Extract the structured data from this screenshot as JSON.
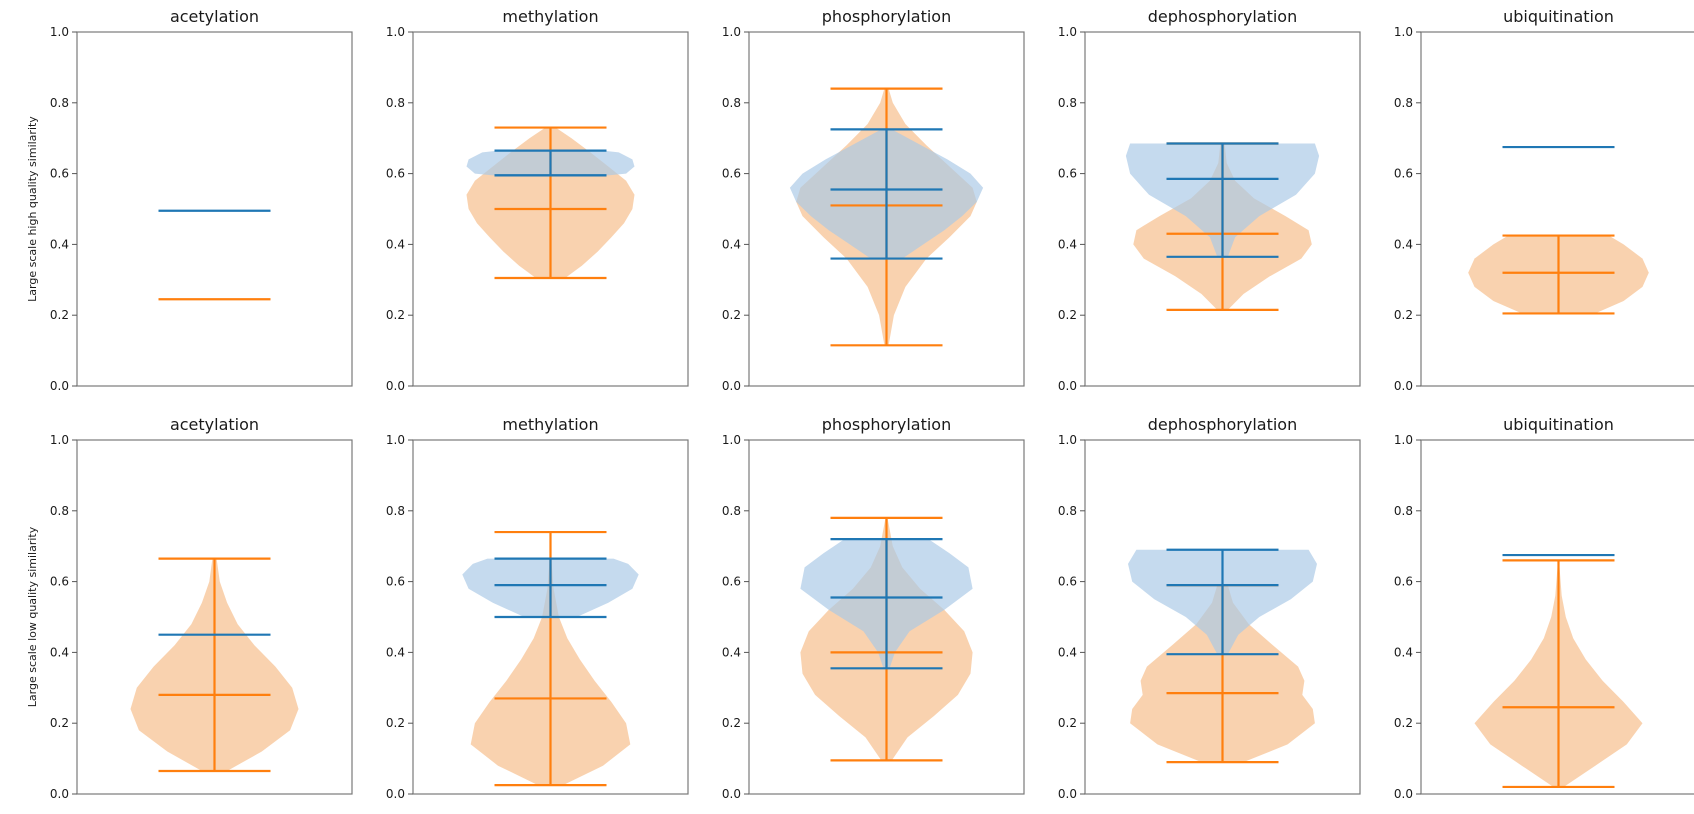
{
  "chart_data": {
    "type": "violin",
    "ylim": [
      0,
      1
    ],
    "yticks": [
      "0.0",
      "0.2",
      "0.4",
      "0.6",
      "0.8",
      "1.0"
    ],
    "colors": {
      "series_a": "#1f77b4",
      "series_a_fill": "#a9c9e6",
      "series_b": "#ff7f0e",
      "series_b_fill": "#f6c190"
    },
    "grid": false,
    "legend": "none",
    "rows": [
      {
        "ylabel": "Large scale high quality similarity",
        "panels": [
          {
            "title": "acetylation",
            "blue": {
              "min": 0.495,
              "max": 0.495,
              "mean": 0.495,
              "density": []
            },
            "orange": {
              "min": 0.245,
              "max": 0.245,
              "mean": 0.245,
              "density": []
            }
          },
          {
            "title": "methylation",
            "blue": {
              "min": 0.595,
              "max": 0.665,
              "mean": 0.595,
              "density": [
                [
                  0.595,
                  0.55
                ],
                [
                  0.6,
                  0.72
                ],
                [
                  0.62,
                  0.8
                ],
                [
                  0.64,
                  0.78
                ],
                [
                  0.66,
                  0.65
                ],
                [
                  0.665,
                  0.5
                ]
              ]
            },
            "orange": {
              "min": 0.305,
              "max": 0.73,
              "mean": 0.5,
              "density": [
                [
                  0.305,
                  0.14
                ],
                [
                  0.34,
                  0.3
                ],
                [
                  0.38,
                  0.45
                ],
                [
                  0.42,
                  0.58
                ],
                [
                  0.46,
                  0.7
                ],
                [
                  0.5,
                  0.78
                ],
                [
                  0.54,
                  0.8
                ],
                [
                  0.58,
                  0.72
                ],
                [
                  0.62,
                  0.55
                ],
                [
                  0.66,
                  0.38
                ],
                [
                  0.7,
                  0.2
                ],
                [
                  0.73,
                  0.05
                ]
              ]
            }
          },
          {
            "title": "phosphorylation",
            "blue": {
              "min": 0.36,
              "max": 0.725,
              "mean": 0.555,
              "density": [
                [
                  0.36,
                  0.15
                ],
                [
                  0.4,
                  0.35
                ],
                [
                  0.44,
                  0.55
                ],
                [
                  0.48,
                  0.72
                ],
                [
                  0.52,
                  0.86
                ],
                [
                  0.56,
                  0.92
                ],
                [
                  0.6,
                  0.8
                ],
                [
                  0.64,
                  0.58
                ],
                [
                  0.68,
                  0.33
                ],
                [
                  0.725,
                  0.05
                ]
              ]
            },
            "orange": {
              "min": 0.115,
              "max": 0.84,
              "mean": 0.51,
              "density": [
                [
                  0.115,
                  0.02
                ],
                [
                  0.2,
                  0.07
                ],
                [
                  0.28,
                  0.18
                ],
                [
                  0.36,
                  0.38
                ],
                [
                  0.42,
                  0.6
                ],
                [
                  0.48,
                  0.8
                ],
                [
                  0.52,
                  0.86
                ],
                [
                  0.56,
                  0.82
                ],
                [
                  0.62,
                  0.6
                ],
                [
                  0.68,
                  0.38
                ],
                [
                  0.74,
                  0.18
                ],
                [
                  0.8,
                  0.06
                ],
                [
                  0.84,
                  0.02
                ]
              ]
            }
          },
          {
            "title": "dephosphorylation",
            "blue": {
              "min": 0.365,
              "max": 0.685,
              "mean": 0.585,
              "density": [
                [
                  0.365,
                  0.05
                ],
                [
                  0.42,
                  0.12
                ],
                [
                  0.48,
                  0.35
                ],
                [
                  0.54,
                  0.7
                ],
                [
                  0.6,
                  0.88
                ],
                [
                  0.65,
                  0.92
                ],
                [
                  0.685,
                  0.88
                ]
              ]
            },
            "orange": {
              "min": 0.215,
              "max": 0.685,
              "mean": 0.43,
              "density": [
                [
                  0.215,
                  0.05
                ],
                [
                  0.26,
                  0.2
                ],
                [
                  0.31,
                  0.45
                ],
                [
                  0.36,
                  0.75
                ],
                [
                  0.4,
                  0.85
                ],
                [
                  0.44,
                  0.82
                ],
                [
                  0.48,
                  0.6
                ],
                [
                  0.53,
                  0.3
                ],
                [
                  0.58,
                  0.12
                ],
                [
                  0.63,
                  0.04
                ],
                [
                  0.685,
                  0.02
                ]
              ]
            }
          },
          {
            "title": "ubiquitination",
            "blue": {
              "min": 0.675,
              "max": 0.675,
              "mean": 0.675,
              "density": []
            },
            "orange": {
              "min": 0.205,
              "max": 0.425,
              "mean": 0.32,
              "density": [
                [
                  0.205,
                  0.35
                ],
                [
                  0.24,
                  0.62
                ],
                [
                  0.28,
                  0.8
                ],
                [
                  0.32,
                  0.86
                ],
                [
                  0.36,
                  0.8
                ],
                [
                  0.4,
                  0.62
                ],
                [
                  0.425,
                  0.48
                ]
              ]
            }
          }
        ]
      },
      {
        "ylabel": "Large scale low quality similarity",
        "panels": [
          {
            "title": "acetylation",
            "blue": {
              "min": 0.45,
              "max": 0.45,
              "mean": 0.45,
              "density": []
            },
            "orange": {
              "min": 0.065,
              "max": 0.665,
              "mean": 0.28,
              "density": [
                [
                  0.065,
                  0.12
                ],
                [
                  0.12,
                  0.45
                ],
                [
                  0.18,
                  0.72
                ],
                [
                  0.24,
                  0.8
                ],
                [
                  0.3,
                  0.74
                ],
                [
                  0.36,
                  0.58
                ],
                [
                  0.42,
                  0.38
                ],
                [
                  0.48,
                  0.22
                ],
                [
                  0.54,
                  0.12
                ],
                [
                  0.6,
                  0.05
                ],
                [
                  0.665,
                  0.02
                ]
              ]
            }
          },
          {
            "title": "methylation",
            "blue": {
              "min": 0.5,
              "max": 0.665,
              "mean": 0.59,
              "density": [
                [
                  0.5,
                  0.25
                ],
                [
                  0.54,
                  0.55
                ],
                [
                  0.58,
                  0.78
                ],
                [
                  0.62,
                  0.84
                ],
                [
                  0.65,
                  0.74
                ],
                [
                  0.665,
                  0.6
                ]
              ]
            },
            "orange": {
              "min": 0.025,
              "max": 0.74,
              "mean": 0.27,
              "density": [
                [
                  0.025,
                  0.12
                ],
                [
                  0.08,
                  0.5
                ],
                [
                  0.14,
                  0.76
                ],
                [
                  0.2,
                  0.72
                ],
                [
                  0.26,
                  0.58
                ],
                [
                  0.32,
                  0.42
                ],
                [
                  0.38,
                  0.28
                ],
                [
                  0.44,
                  0.16
                ],
                [
                  0.5,
                  0.08
                ],
                [
                  0.58,
                  0.03
                ],
                [
                  0.66,
                  0.01
                ],
                [
                  0.74,
                  0.005
                ]
              ]
            }
          },
          {
            "title": "phosphorylation",
            "blue": {
              "min": 0.355,
              "max": 0.72,
              "mean": 0.555,
              "density": [
                [
                  0.355,
                  0.03
                ],
                [
                  0.4,
                  0.08
                ],
                [
                  0.46,
                  0.22
                ],
                [
                  0.52,
                  0.55
                ],
                [
                  0.58,
                  0.82
                ],
                [
                  0.64,
                  0.78
                ],
                [
                  0.68,
                  0.6
                ],
                [
                  0.72,
                  0.4
                ]
              ]
            },
            "orange": {
              "min": 0.095,
              "max": 0.78,
              "mean": 0.4,
              "density": [
                [
                  0.095,
                  0.05
                ],
                [
                  0.16,
                  0.2
                ],
                [
                  0.22,
                  0.45
                ],
                [
                  0.28,
                  0.68
                ],
                [
                  0.34,
                  0.8
                ],
                [
                  0.4,
                  0.82
                ],
                [
                  0.46,
                  0.74
                ],
                [
                  0.52,
                  0.55
                ],
                [
                  0.58,
                  0.32
                ],
                [
                  0.64,
                  0.15
                ],
                [
                  0.7,
                  0.06
                ],
                [
                  0.78,
                  0.01
                ]
              ]
            }
          },
          {
            "title": "dephosphorylation",
            "blue": {
              "min": 0.395,
              "max": 0.69,
              "mean": 0.59,
              "density": [
                [
                  0.395,
                  0.05
                ],
                [
                  0.45,
                  0.15
                ],
                [
                  0.5,
                  0.35
                ],
                [
                  0.55,
                  0.65
                ],
                [
                  0.6,
                  0.86
                ],
                [
                  0.65,
                  0.9
                ],
                [
                  0.69,
                  0.82
                ]
              ]
            },
            "orange": {
              "min": 0.09,
              "max": 0.59,
              "mean": 0.285,
              "density": [
                [
                  0.09,
                  0.2
                ],
                [
                  0.14,
                  0.62
                ],
                [
                  0.2,
                  0.88
                ],
                [
                  0.24,
                  0.86
                ],
                [
                  0.28,
                  0.76
                ],
                [
                  0.32,
                  0.78
                ],
                [
                  0.36,
                  0.72
                ],
                [
                  0.42,
                  0.48
                ],
                [
                  0.48,
                  0.25
                ],
                [
                  0.54,
                  0.1
                ],
                [
                  0.59,
                  0.05
                ]
              ]
            }
          },
          {
            "title": "ubiquitination",
            "blue": {
              "min": 0.675,
              "max": 0.675,
              "mean": 0.675,
              "density": []
            },
            "orange": {
              "min": 0.02,
              "max": 0.66,
              "mean": 0.245,
              "density": [
                [
                  0.02,
                  0.05
                ],
                [
                  0.08,
                  0.35
                ],
                [
                  0.14,
                  0.65
                ],
                [
                  0.2,
                  0.8
                ],
                [
                  0.26,
                  0.62
                ],
                [
                  0.32,
                  0.42
                ],
                [
                  0.38,
                  0.26
                ],
                [
                  0.44,
                  0.14
                ],
                [
                  0.5,
                  0.07
                ],
                [
                  0.56,
                  0.03
                ],
                [
                  0.66,
                  0.005
                ]
              ]
            }
          }
        ]
      }
    ]
  }
}
